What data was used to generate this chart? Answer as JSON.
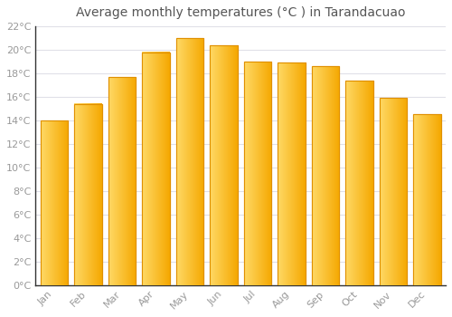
{
  "title": "Average monthly temperatures (°C ) in Tarandacuao",
  "months": [
    "Jan",
    "Feb",
    "Mar",
    "Apr",
    "May",
    "Jun",
    "Jul",
    "Aug",
    "Sep",
    "Oct",
    "Nov",
    "Dec"
  ],
  "values": [
    14.0,
    15.4,
    17.7,
    19.8,
    21.0,
    20.4,
    19.0,
    18.9,
    18.6,
    17.4,
    15.9,
    14.5
  ],
  "bar_color_left": "#FFD966",
  "bar_color_right": "#F5A800",
  "bar_edge_color": "#E09000",
  "background_color": "#FFFFFF",
  "grid_color": "#E0E0E8",
  "text_color": "#999999",
  "title_color": "#555555",
  "axis_color": "#333333",
  "ylim": [
    0,
    22
  ],
  "yticks": [
    0,
    2,
    4,
    6,
    8,
    10,
    12,
    14,
    16,
    18,
    20,
    22
  ],
  "title_fontsize": 10,
  "tick_fontsize": 8
}
